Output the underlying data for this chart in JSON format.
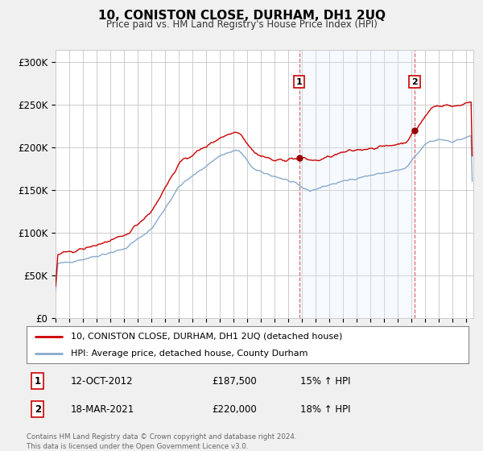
{
  "title": "10, CONISTON CLOSE, DURHAM, DH1 2UQ",
  "subtitle": "Price paid vs. HM Land Registry's House Price Index (HPI)",
  "ylabel_ticks": [
    "£0",
    "£50K",
    "£100K",
    "£150K",
    "£200K",
    "£250K",
    "£300K"
  ],
  "ytick_values": [
    0,
    50000,
    100000,
    150000,
    200000,
    250000,
    300000
  ],
  "ylim": [
    0,
    315000
  ],
  "xlim_start": 1995.0,
  "xlim_end": 2025.5,
  "background_color": "#f0f0f0",
  "plot_bg_color": "#ffffff",
  "sale1": {
    "date": "12-OCT-2012",
    "price": 187500,
    "x": 2012.79,
    "pct": "15%",
    "direction": "↑"
  },
  "sale2": {
    "date": "18-MAR-2021",
    "price": 220000,
    "x": 2021.21,
    "pct": "18%",
    "direction": "↑"
  },
  "legend_line1": "10, CONISTON CLOSE, DURHAM, DH1 2UQ (detached house)",
  "legend_line2": "HPI: Average price, detached house, County Durham",
  "footer": "Contains HM Land Registry data © Crown copyright and database right 2024.\nThis data is licensed under the Open Government Licence v3.0.",
  "line_color_red": "#cc0000",
  "line_color_blue": "#88aacc",
  "shade_color": "#ddeeff",
  "vline_color": "#dd4444",
  "marker_color": "#990000"
}
